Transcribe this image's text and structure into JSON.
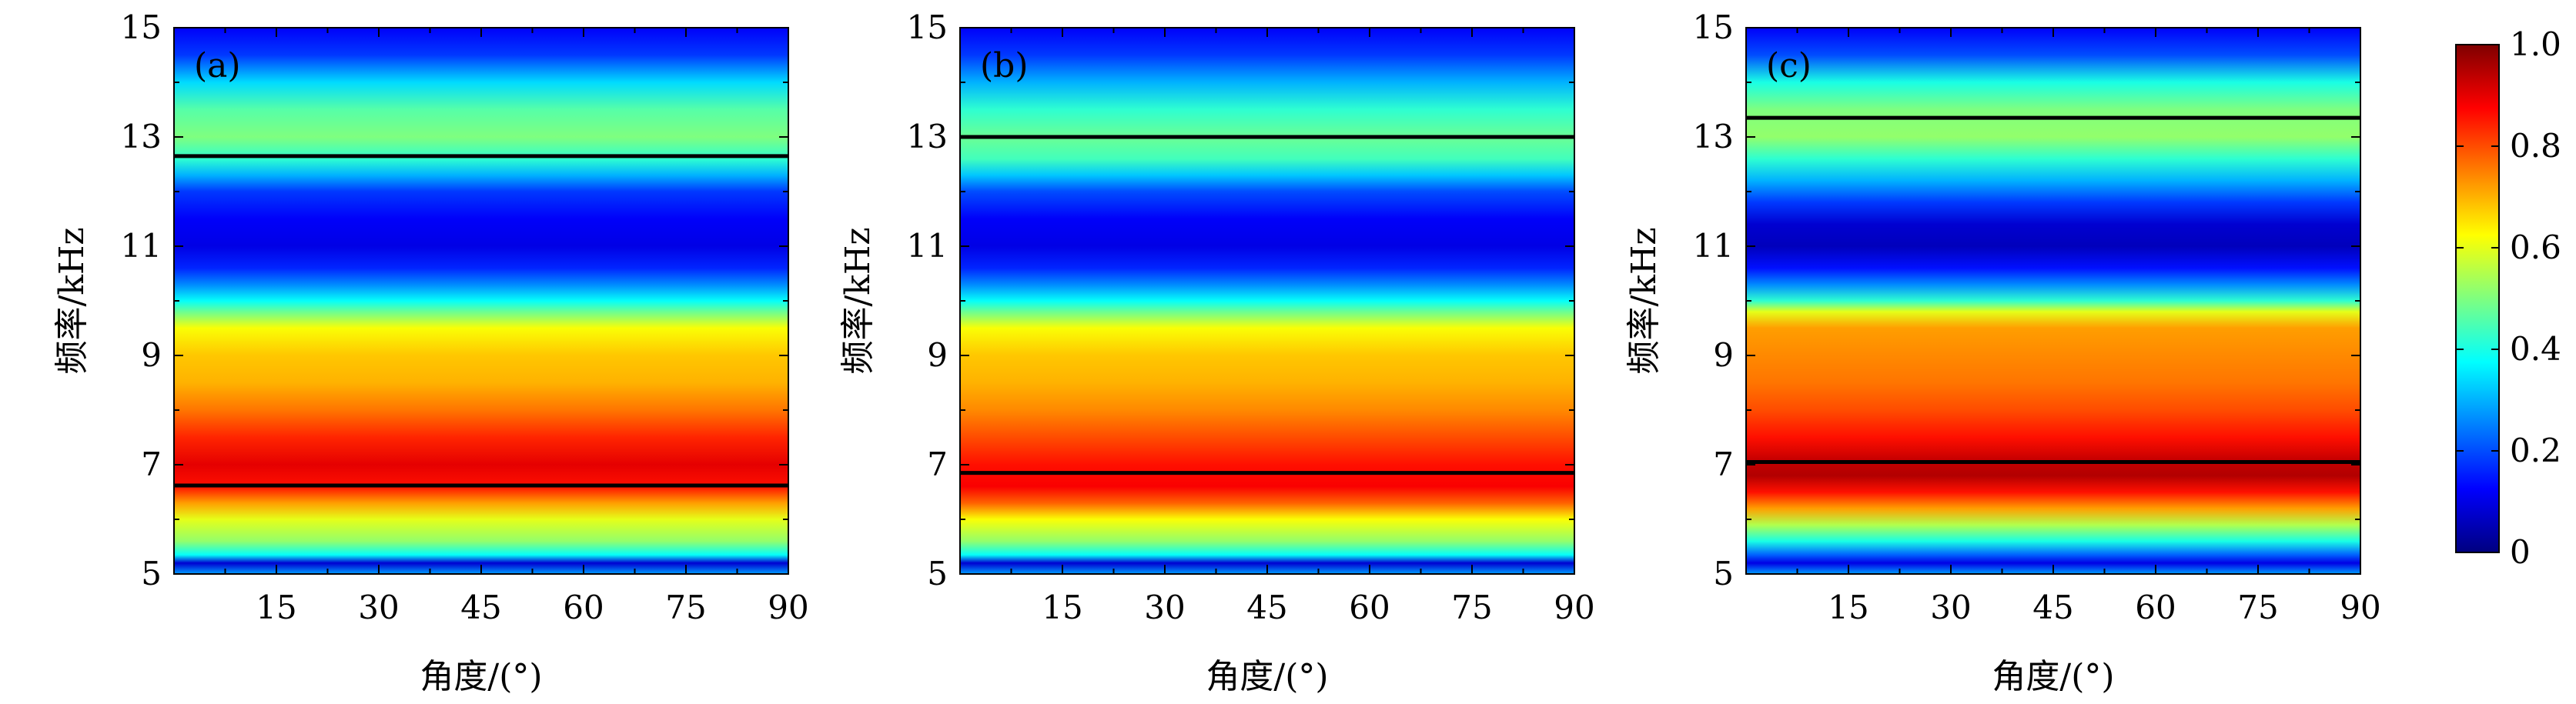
{
  "figure": {
    "colormap": "jet",
    "colormap_stops": [
      "#00007f",
      "#0000ff",
      "#007fff",
      "#00ffff",
      "#7fff7f",
      "#ffff00",
      "#ff7f00",
      "#ff0000",
      "#7f0000"
    ]
  },
  "chart_data": [
    {
      "type": "heatmap",
      "panel_label": "(a)",
      "xlabel": "角度/(°)",
      "ylabel": "频率/kHz",
      "xlim": [
        0,
        90
      ],
      "ylim": [
        5,
        15
      ],
      "xticks": [
        15,
        30,
        45,
        60,
        75,
        90
      ],
      "yticks": [
        5,
        7,
        9,
        11,
        13,
        15
      ],
      "intensity_profile": {
        "freq_khz": [
          5.0,
          5.2,
          5.35,
          5.6,
          6.0,
          6.3,
          6.6,
          7.0,
          7.5,
          8.0,
          8.5,
          9.0,
          9.5,
          9.8,
          10.0,
          10.3,
          10.6,
          11.0,
          11.5,
          12.0,
          12.3,
          12.6,
          13.0,
          13.5,
          14.0,
          14.5,
          15.0
        ],
        "value": [
          0.28,
          0.08,
          0.38,
          0.52,
          0.6,
          0.72,
          0.86,
          0.9,
          0.84,
          0.76,
          0.7,
          0.68,
          0.62,
          0.48,
          0.38,
          0.26,
          0.16,
          0.1,
          0.12,
          0.18,
          0.3,
          0.42,
          0.5,
          0.46,
          0.34,
          0.18,
          0.12
        ]
      },
      "reference_lines_khz": [
        12.65,
        6.62
      ]
    },
    {
      "type": "heatmap",
      "panel_label": "(b)",
      "xlabel": "角度/(°)",
      "ylabel": "频率/kHz",
      "xlim": [
        0,
        90
      ],
      "ylim": [
        5,
        15
      ],
      "xticks": [
        15,
        30,
        45,
        60,
        75,
        90
      ],
      "yticks": [
        5,
        7,
        9,
        11,
        13,
        15
      ],
      "intensity_profile": {
        "freq_khz": [
          5.0,
          5.2,
          5.35,
          5.6,
          6.0,
          6.3,
          6.6,
          7.0,
          7.5,
          8.0,
          8.5,
          9.0,
          9.5,
          9.8,
          10.0,
          10.3,
          10.6,
          11.0,
          11.5,
          12.0,
          12.3,
          12.6,
          13.0,
          13.5,
          14.0,
          14.5,
          15.0
        ],
        "value": [
          0.28,
          0.08,
          0.38,
          0.52,
          0.62,
          0.78,
          0.88,
          0.86,
          0.8,
          0.74,
          0.7,
          0.68,
          0.62,
          0.48,
          0.38,
          0.26,
          0.16,
          0.1,
          0.12,
          0.2,
          0.32,
          0.44,
          0.48,
          0.42,
          0.3,
          0.18,
          0.12
        ]
      },
      "reference_lines_khz": [
        13.0,
        6.85
      ]
    },
    {
      "type": "heatmap",
      "panel_label": "(c)",
      "xlabel": "角度/(°)",
      "ylabel": "频率/kHz",
      "xlim": [
        0,
        90
      ],
      "ylim": [
        5,
        15
      ],
      "xticks": [
        15,
        30,
        45,
        60,
        75,
        90
      ],
      "yticks": [
        5,
        7,
        9,
        11,
        13,
        15
      ],
      "intensity_profile": {
        "freq_khz": [
          5.0,
          5.2,
          5.35,
          5.6,
          5.9,
          6.2,
          6.5,
          6.8,
          7.1,
          7.5,
          8.0,
          8.5,
          9.0,
          9.5,
          9.8,
          10.0,
          10.3,
          10.6,
          11.0,
          11.4,
          11.8,
          12.2,
          12.6,
          13.0,
          13.5,
          14.0,
          14.5,
          15.0
        ],
        "value": [
          0.28,
          0.1,
          0.22,
          0.4,
          0.55,
          0.72,
          0.86,
          0.95,
          0.93,
          0.86,
          0.8,
          0.76,
          0.74,
          0.72,
          0.6,
          0.42,
          0.26,
          0.14,
          0.06,
          0.08,
          0.18,
          0.3,
          0.42,
          0.52,
          0.5,
          0.4,
          0.2,
          0.12
        ]
      },
      "reference_lines_khz": [
        13.35,
        7.05
      ]
    }
  ],
  "colorbar": {
    "range": [
      0,
      1.0
    ],
    "tick_labels": [
      "0",
      "0.2",
      "0.4",
      "0.6",
      "0.8",
      "1.0"
    ],
    "tick_values": [
      0,
      0.2,
      0.4,
      0.6,
      0.8,
      1.0
    ]
  }
}
